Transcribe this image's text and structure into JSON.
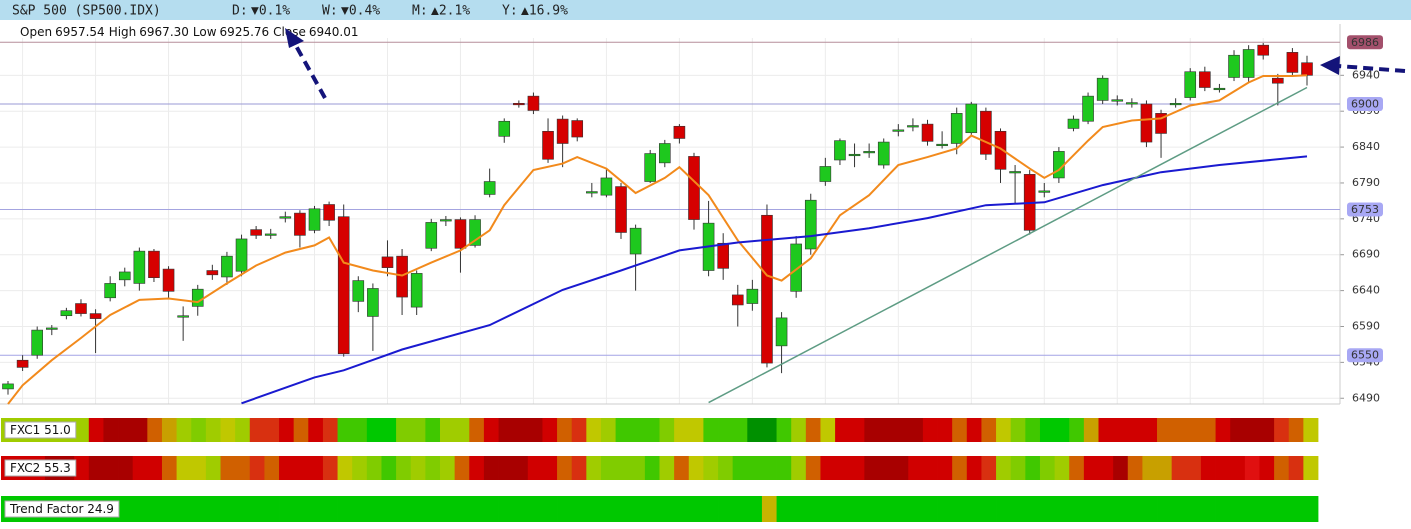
{
  "header": {
    "title": "S&P 500 (SP500.IDX)",
    "changes": [
      {
        "label": "D:",
        "value": "▼0.1%",
        "color": "#d00000"
      },
      {
        "label": "W:",
        "value": "▼0.4%",
        "color": "#d00000"
      },
      {
        "label": "M:",
        "value": "▲2.1%",
        "color": "#1f9a1f"
      },
      {
        "label": "Y:",
        "value": "▲16.9%",
        "color": "#1f9a1f"
      }
    ],
    "ohlc": [
      {
        "label": "Open",
        "value": "6957.54"
      },
      {
        "label": "High",
        "value": "6967.30"
      },
      {
        "label": "Low",
        "value": "6925.76"
      },
      {
        "label": "Close",
        "value": "6940.01"
      }
    ]
  },
  "chart_data": {
    "type": "candlestick",
    "open": [
      6503,
      6543,
      6550,
      6586,
      6605,
      6622,
      6608,
      6630,
      6655,
      6650,
      6695,
      6670,
      6604,
      6618,
      6668,
      6659,
      6667,
      6725,
      6718,
      6742,
      6748,
      6724,
      6760,
      6743,
      6625,
      6604,
      6687,
      6688,
      6617,
      6699,
      6738,
      6739,
      6703,
      6774,
      6855,
      6901,
      6911,
      6862,
      6879,
      6877,
      6776,
      6773,
      6785,
      6691,
      6792,
      6818,
      6869,
      6827,
      6668,
      6706,
      6634,
      6622,
      6745,
      6563,
      6639,
      6698,
      6792,
      6822,
      6829,
      6833,
      6815,
      6863,
      6869,
      6872,
      6843,
      6845,
      6860,
      6890,
      6862,
      6805,
      6802,
      6778,
      6797,
      6866,
      6876,
      6905,
      6905,
      6901,
      6900,
      6887,
      6900,
      6909,
      6945,
      6921,
      6937,
      6937,
      6982,
      6936,
      6972,
      6957.54
    ],
    "high": [
      6514,
      6550,
      6590,
      6592,
      6616,
      6628,
      6614,
      6660,
      6672,
      6700,
      6698,
      6674,
      6618,
      6648,
      6676,
      6694,
      6718,
      6730,
      6726,
      6750,
      6752,
      6758,
      6764,
      6760,
      6660,
      6650,
      6710,
      6698,
      6668,
      6740,
      6744,
      6742,
      6745,
      6810,
      6880,
      6905,
      6916,
      6880,
      6884,
      6880,
      6790,
      6810,
      6790,
      6732,
      6836,
      6850,
      6872,
      6832,
      6765,
      6720,
      6648,
      6655,
      6760,
      6610,
      6716,
      6775,
      6825,
      6852,
      6845,
      6845,
      6852,
      6872,
      6880,
      6878,
      6862,
      6895,
      6903,
      6895,
      6866,
      6815,
      6808,
      6790,
      6840,
      6884,
      6916,
      6940,
      6912,
      6908,
      6905,
      6892,
      6908,
      6950,
      6952,
      6928,
      6975,
      6982,
      6985,
      6942,
      6978,
      6967.3
    ],
    "low": [
      6495,
      6528,
      6545,
      6578,
      6600,
      6604,
      6553,
      6625,
      6646,
      6640,
      6652,
      6628,
      6570,
      6605,
      6655,
      6648,
      6660,
      6712,
      6712,
      6735,
      6700,
      6720,
      6730,
      6548,
      6610,
      6556,
      6660,
      6606,
      6606,
      6695,
      6730,
      6665,
      6700,
      6770,
      6846,
      6895,
      6886,
      6818,
      6812,
      6848,
      6770,
      6770,
      6712,
      6640,
      6790,
      6812,
      6845,
      6725,
      6660,
      6655,
      6590,
      6612,
      6533,
      6525,
      6630,
      6690,
      6786,
      6815,
      6812,
      6825,
      6810,
      6855,
      6862,
      6842,
      6838,
      6830,
      6855,
      6822,
      6790,
      6760,
      6718,
      6770,
      6790,
      6862,
      6872,
      6900,
      6898,
      6895,
      6840,
      6825,
      6895,
      6905,
      6918,
      6916,
      6932,
      6930,
      6962,
      6898,
      6938,
      6925.76
    ],
    "close": [
      6510,
      6533,
      6585,
      6588,
      6612,
      6608,
      6601,
      6650,
      6666,
      6695,
      6658,
      6639,
      6605,
      6642,
      6662,
      6688,
      6712,
      6717,
      6719,
      6743,
      6717,
      6754,
      6738,
      6552,
      6654,
      6643,
      6672,
      6631,
      6664,
      6735,
      6739,
      6699,
      6739,
      6792,
      6876,
      6899,
      6891,
      6823,
      6845,
      6854,
      6778,
      6797,
      6721,
      6727,
      6831,
      6845,
      6852,
      6739,
      6734,
      6671,
      6620,
      6642,
      6539,
      6602,
      6705,
      6766,
      6813,
      6849,
      6830,
      6834,
      6847,
      6864,
      6870,
      6848,
      6844,
      6887,
      6900,
      6830,
      6809,
      6806,
      6724,
      6779,
      6834,
      6879,
      6911,
      6936,
      6906,
      6902,
      6847,
      6859,
      6901,
      6945,
      6923,
      6922,
      6968,
      6976,
      6968,
      6929,
      6944,
      6940.01
    ],
    "up_color": "#1ec81e",
    "down_color": "#d60000",
    "ylim": [
      6482,
      6992
    ],
    "yticks": [
      6490,
      6540,
      6590,
      6640,
      6690,
      6740,
      6790,
      6840,
      6890,
      6940
    ],
    "grid": true,
    "levels": [
      {
        "value": 6986,
        "color": "#a3506c",
        "text_color": "#ffffff",
        "line_color": "#b68e9a"
      },
      {
        "value": 6900,
        "color": "#a8a8f4",
        "text_color": "#1c1c9a",
        "line_color": "#9a9ad4"
      },
      {
        "value": 6753,
        "color": "#a8a8f4",
        "text_color": "#1c1c9a",
        "line_color": "#a4a4e0"
      },
      {
        "value": 6550,
        "color": "#a8a8f4",
        "text_color": "#1c1c9a",
        "line_color": "#a4a4e6"
      }
    ],
    "overlays": [
      {
        "color": "#f28a1c",
        "x": [
          0,
          1,
          3,
          5,
          7,
          9,
          11,
          13,
          15,
          17,
          19,
          21,
          22,
          23,
          25,
          27,
          29,
          31,
          33,
          34,
          36,
          38,
          39,
          41,
          43,
          45,
          46,
          48,
          50,
          52,
          53,
          55,
          57,
          59,
          61,
          63,
          65,
          66,
          68,
          70,
          71,
          72,
          74,
          75,
          77,
          79,
          81,
          83,
          85,
          86,
          88,
          89
        ],
        "values": [
          6482,
          6508,
          6543,
          6574,
          6606,
          6627,
          6629,
          6624,
          6650,
          6675,
          6693,
          6703,
          6714,
          6679,
          6668,
          6661,
          6679,
          6696,
          6724,
          6759,
          6808,
          6817,
          6826,
          6810,
          6776,
          6797,
          6812,
          6773,
          6710,
          6661,
          6654,
          6685,
          6745,
          6773,
          6815,
          6826,
          6838,
          6856,
          6838,
          6810,
          6797,
          6808,
          6849,
          6868,
          6877,
          6880,
          6898,
          6905,
          6930,
          6939,
          6939,
          6940
        ]
      },
      {
        "color": "#1a1ad0",
        "x": [
          16,
          21,
          23,
          27,
          33,
          38,
          42,
          46,
          50,
          55,
          59,
          63,
          67,
          71,
          75,
          79,
          83,
          89
        ],
        "values": [
          6483,
          6519,
          6529,
          6558,
          6592,
          6641,
          6668,
          6696,
          6707,
          6716,
          6727,
          6741,
          6759,
          6763,
          6787,
          6805,
          6815,
          6827
        ]
      },
      {
        "color": "#5e9c84",
        "x": [
          48,
          89
        ],
        "values": [
          6484,
          6923
        ]
      }
    ],
    "indicators": [
      {
        "label": "FXC1 51.0",
        "colors": [
          "#a0cc00",
          "#a0cc00",
          "#a0cc00",
          "#a0cc00",
          "#a0cc00",
          "#a0cc00",
          "#d00000",
          "#a80000",
          "#a80000",
          "#a80000",
          "#d06000",
          "#c8a000",
          "#a0cc00",
          "#80cc00",
          "#a0cc00",
          "#c0c800",
          "#a0cc00",
          "#d83010",
          "#d83010",
          "#d00000",
          "#d06000",
          "#d00000",
          "#d83010",
          "#40c800",
          "#40c800",
          "#00c800",
          "#00c800",
          "#80cc00",
          "#80cc00",
          "#40c800",
          "#a0cc00",
          "#a0cc00",
          "#d06000",
          "#d00000",
          "#a80000",
          "#a80000",
          "#a80000",
          "#d00000",
          "#d06000",
          "#d83010",
          "#c0c800",
          "#a0cc00",
          "#40c800",
          "#40c800",
          "#40c800",
          "#80cc00",
          "#c0c800",
          "#c0c800",
          "#40c800",
          "#40c800",
          "#40c800",
          "#009000",
          "#009000",
          "#40c800",
          "#a0cc00",
          "#d06000",
          "#c0c800",
          "#d00000",
          "#d00000",
          "#a80000",
          "#a80000",
          "#a80000",
          "#a80000",
          "#d00000",
          "#d00000",
          "#d06000",
          "#d00000",
          "#d06000",
          "#c0c800",
          "#80cc00",
          "#40c800",
          "#00c800",
          "#00c800",
          "#40c800",
          "#c8a000",
          "#d00000",
          "#d00000",
          "#d00000",
          "#d00000",
          "#d06000",
          "#d06000",
          "#d06000",
          "#d06000",
          "#d00000",
          "#a80000",
          "#a80000",
          "#a80000",
          "#d83010",
          "#d06000",
          "#c0c800"
        ]
      },
      {
        "label": "FXC2 55.3",
        "colors": [
          "#d00000",
          "#d00000",
          "#d00000",
          "#a80000",
          "#a80000",
          "#d00000",
          "#a80000",
          "#a80000",
          "#a80000",
          "#d00000",
          "#d00000",
          "#d06000",
          "#c0c800",
          "#c0c800",
          "#a0cc00",
          "#d06000",
          "#d06000",
          "#d83010",
          "#d06000",
          "#d00000",
          "#d00000",
          "#d00000",
          "#d83010",
          "#c0c800",
          "#a0cc00",
          "#80cc00",
          "#40c800",
          "#80cc00",
          "#a0cc00",
          "#80cc00",
          "#a0cc00",
          "#d06000",
          "#d00000",
          "#a80000",
          "#a80000",
          "#a80000",
          "#d00000",
          "#d00000",
          "#d06000",
          "#d83010",
          "#a0cc00",
          "#80cc00",
          "#80cc00",
          "#80cc00",
          "#40c800",
          "#a0cc00",
          "#d06000",
          "#c0c800",
          "#a0cc00",
          "#80cc00",
          "#40c800",
          "#40c800",
          "#40c800",
          "#40c800",
          "#a0cc00",
          "#d06000",
          "#d00000",
          "#d00000",
          "#d00000",
          "#a80000",
          "#a80000",
          "#a80000",
          "#d00000",
          "#d00000",
          "#d00000",
          "#d06000",
          "#d00000",
          "#d83010",
          "#a0cc00",
          "#80cc00",
          "#40c800",
          "#80cc00",
          "#a0cc00",
          "#d06000",
          "#d00000",
          "#d00000",
          "#a80000",
          "#d06000",
          "#c8a000",
          "#c8a000",
          "#d83010",
          "#d83010",
          "#d00000",
          "#d00000",
          "#d00000",
          "#e01010",
          "#d00000",
          "#d06000",
          "#d83010",
          "#c0c800"
        ]
      },
      {
        "label": "Trend Factor 24.9",
        "colors": [
          "#00c800",
          "#00c800",
          "#00c800",
          "#00c800",
          "#00c800",
          "#00c800",
          "#00c800",
          "#00c800",
          "#00c800",
          "#00c800",
          "#00c800",
          "#00c800",
          "#00c800",
          "#00c800",
          "#00c800",
          "#00c800",
          "#00c800",
          "#00c800",
          "#00c800",
          "#00c800",
          "#00c800",
          "#00c800",
          "#00c800",
          "#00c800",
          "#00c800",
          "#00c800",
          "#00c800",
          "#00c800",
          "#00c800",
          "#00c800",
          "#00c800",
          "#00c800",
          "#00c800",
          "#00c800",
          "#00c800",
          "#00c800",
          "#00c800",
          "#00c800",
          "#00c800",
          "#00c800",
          "#00c800",
          "#00c800",
          "#00c800",
          "#00c800",
          "#00c800",
          "#00c800",
          "#00c800",
          "#00c800",
          "#00c800",
          "#00c800",
          "#00c800",
          "#00c800",
          "#c8b400",
          "#00c800",
          "#00c800",
          "#00c800",
          "#00c800",
          "#00c800",
          "#00c800",
          "#00c800",
          "#00c800",
          "#00c800",
          "#00c800",
          "#00c800",
          "#00c800",
          "#00c800",
          "#00c800",
          "#00c800",
          "#00c800",
          "#00c800",
          "#00c800",
          "#00c800",
          "#00c800",
          "#00c800",
          "#00c800",
          "#00c800",
          "#00c800",
          "#00c800",
          "#00c800",
          "#00c800",
          "#00c800",
          "#00c800",
          "#00c800",
          "#00c800",
          "#00c800",
          "#00c800",
          "#00c800",
          "#00c800",
          "#00c800",
          "#00c800"
        ]
      }
    ]
  }
}
